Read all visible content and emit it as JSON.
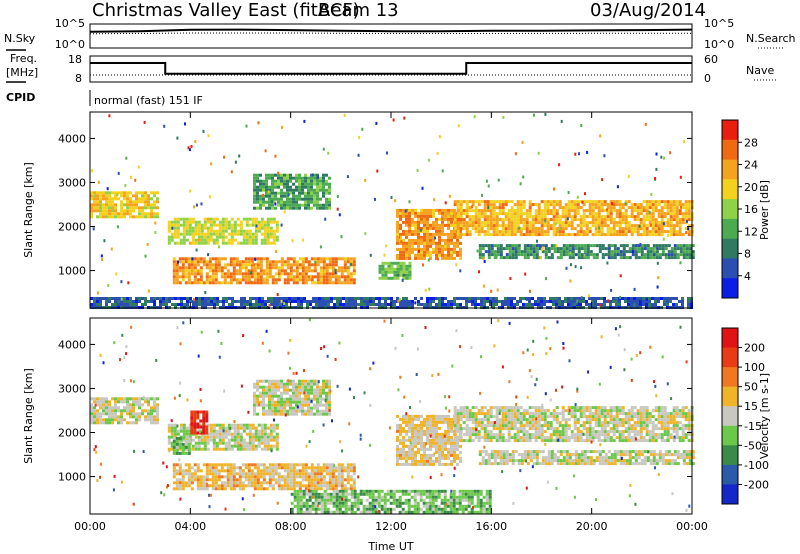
{
  "header": {
    "title": "Christmas Valley East (fitACF)",
    "beam": "Beam 13",
    "date": "03/Aug/2014"
  },
  "panels": {
    "nsky_label": "N.Sky",
    "nsearch_label": "N.Search",
    "nsky_ticks": [
      "10^5",
      "10^0"
    ],
    "nsearch_ticks": [
      "10^5",
      "10^0"
    ],
    "freq_label_1": "Freq.",
    "freq_label_2": "[MHz]",
    "freq_ticks": [
      "18",
      "8"
    ],
    "nave_label": "Nave",
    "nave_ticks": [
      "60",
      "0"
    ],
    "cpid_label": "CPID",
    "cpid_value": "normal (fast) 151 IF"
  },
  "colors": {
    "power": [
      "#0a1ee6",
      "#2a4fb0",
      "#2f7a60",
      "#4caa50",
      "#8fd24a",
      "#f2d21e",
      "#f5a21e",
      "#f06a14",
      "#e81e0f"
    ],
    "velocity": [
      "#1428c8",
      "#2a5aa8",
      "#3a8a4a",
      "#6cc84a",
      "#c8c8c0",
      "#f0b428",
      "#f07820",
      "#e83c14",
      "#e01414"
    ]
  },
  "chart_data": [
    {
      "type": "line",
      "title": "N.Sky / N.Search",
      "x_range": [
        "00:00",
        "24:00"
      ],
      "ylim": [
        1,
        100000
      ],
      "series": [
        {
          "name": "N.Sky",
          "x": [
            "00:00",
            "02:00",
            "04:00",
            "06:00",
            "08:00",
            "10:00",
            "12:00",
            "14:00",
            "16:00",
            "18:00",
            "20:00",
            "22:00",
            "24:00"
          ],
          "values": [
            3000,
            4000,
            8000,
            9000,
            7000,
            5000,
            4000,
            4000,
            5000,
            5000,
            6000,
            7000,
            9000
          ]
        },
        {
          "name": "N.Search",
          "x": [
            "00:00",
            "04:00",
            "08:00",
            "12:00",
            "16:00",
            "20:00",
            "24:00"
          ],
          "values": [
            1000,
            1500,
            1500,
            1200,
            1200,
            1300,
            1400
          ]
        }
      ]
    },
    {
      "type": "line",
      "title": "Freq. / Nave",
      "x_range": [
        "00:00",
        "24:00"
      ],
      "series": [
        {
          "name": "Freq. [MHz]",
          "axis_range": [
            8,
            18
          ],
          "x": [
            "00:00",
            "03:00",
            "03:00",
            "15:00",
            "15:00",
            "24:00"
          ],
          "values": [
            15.5,
            15.5,
            11,
            11,
            15.5,
            15.5
          ]
        },
        {
          "name": "Nave",
          "axis_range": [
            0,
            60
          ],
          "x": [
            "00:00",
            "24:00"
          ],
          "values": [
            15,
            15
          ]
        }
      ]
    },
    {
      "type": "heatmap",
      "xlabel": "Time UT",
      "ylabel": "Slant Range [km]",
      "colorbar_label": "Power [dB]",
      "colorbar_ticks": [
        "28",
        "24",
        "20",
        "16",
        "12",
        "8",
        "4"
      ],
      "x_ticks": [
        "00:00",
        "04:00",
        "08:00",
        "12:00",
        "16:00",
        "20:00",
        "00:00"
      ],
      "y_ticks": [
        "4000",
        "3000",
        "2000",
        "1000"
      ],
      "x_range_hours": [
        0,
        24
      ],
      "ylim": [
        150,
        4600
      ],
      "vlim": [
        0,
        32
      ],
      "regions": [
        {
          "t": [
            0.0,
            2.7
          ],
          "r": [
            2200,
            2800
          ],
          "v": 20
        },
        {
          "t": [
            3.1,
            7.5
          ],
          "r": [
            1600,
            2200
          ],
          "v": 18
        },
        {
          "t": [
            3.3,
            10.5
          ],
          "r": [
            700,
            1300
          ],
          "v": 24
        },
        {
          "t": [
            6.5,
            9.5
          ],
          "r": [
            2400,
            3200
          ],
          "v": 12
        },
        {
          "t": [
            11.5,
            12.8
          ],
          "r": [
            800,
            1200
          ],
          "v": 14
        },
        {
          "t": [
            12.2,
            14.8
          ],
          "r": [
            1300,
            2400
          ],
          "v": 24
        },
        {
          "t": [
            14.5,
            24.0
          ],
          "r": [
            1800,
            2600
          ],
          "v": 22
        },
        {
          "t": [
            15.5,
            24.0
          ],
          "r": [
            1300,
            1600
          ],
          "v": 10
        },
        {
          "t": [
            0.0,
            24.0
          ],
          "r": [
            150,
            400
          ],
          "v": 6
        }
      ]
    },
    {
      "type": "heatmap",
      "xlabel": "Time UT",
      "ylabel": "Slant Range [km]",
      "colorbar_label": "Velocity [m s-1]",
      "colorbar_ticks": [
        "200",
        "100",
        "50",
        "15",
        "-15",
        "-50",
        "-100",
        "-200"
      ],
      "x_ticks": [
        "00:00",
        "04:00",
        "08:00",
        "12:00",
        "16:00",
        "20:00",
        "00:00"
      ],
      "y_ticks": [
        "4000",
        "3000",
        "2000",
        "1000"
      ],
      "x_range_hours": [
        0,
        24
      ],
      "ylim": [
        150,
        4600
      ],
      "vlim": [
        -240,
        240
      ],
      "regions": [
        {
          "t": [
            0.0,
            2.7
          ],
          "r": [
            2200,
            2800
          ],
          "v": 0
        },
        {
          "t": [
            3.1,
            7.5
          ],
          "r": [
            1600,
            2200
          ],
          "v": 0
        },
        {
          "t": [
            3.3,
            4.0
          ],
          "r": [
            1500,
            1900
          ],
          "v": -60
        },
        {
          "t": [
            3.3,
            10.5
          ],
          "r": [
            700,
            1300
          ],
          "v": 45
        },
        {
          "t": [
            4.0,
            4.6
          ],
          "r": [
            2000,
            2500
          ],
          "v": 200
        },
        {
          "t": [
            6.5,
            9.5
          ],
          "r": [
            2400,
            3200
          ],
          "v": 0
        },
        {
          "t": [
            12.2,
            14.8
          ],
          "r": [
            1300,
            2400
          ],
          "v": 30
        },
        {
          "t": [
            14.5,
            24.0
          ],
          "r": [
            1800,
            2600
          ],
          "v": 0
        },
        {
          "t": [
            15.5,
            24.0
          ],
          "r": [
            1300,
            1600
          ],
          "v": 0
        },
        {
          "t": [
            8.0,
            16.0
          ],
          "r": [
            200,
            700
          ],
          "v": -60
        }
      ]
    }
  ]
}
